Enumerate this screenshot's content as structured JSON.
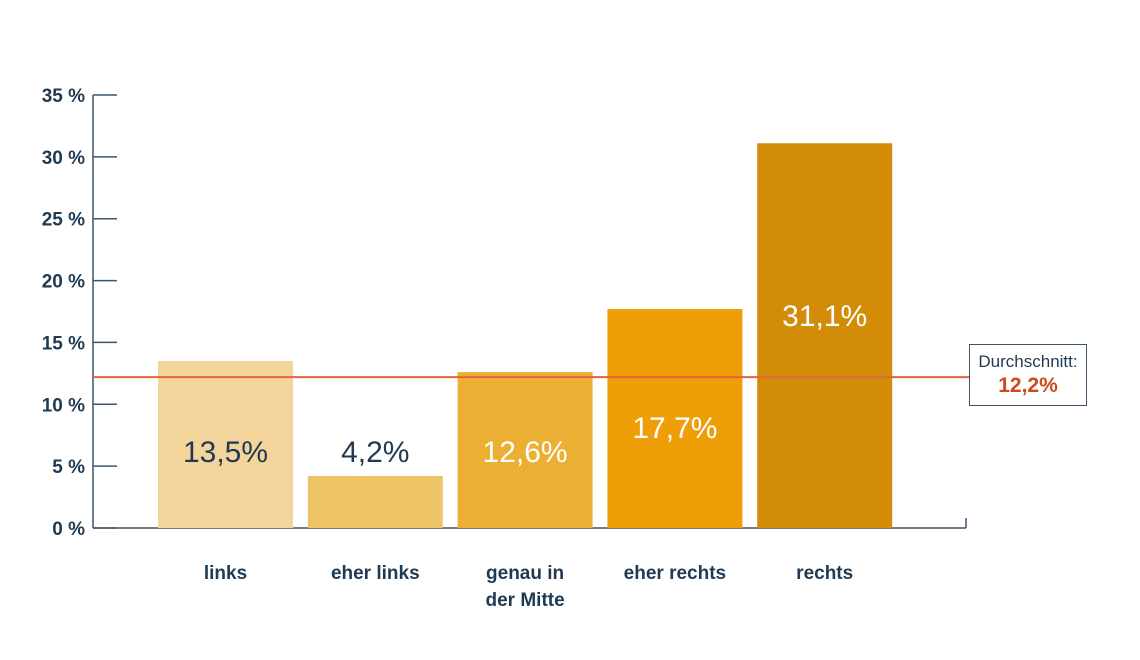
{
  "chart_data": {
    "type": "bar",
    "categories": [
      [
        "links"
      ],
      [
        "eher links"
      ],
      [
        "genau in",
        "der Mitte"
      ],
      [
        "eher rechts"
      ],
      [
        "rechts"
      ]
    ],
    "values": [
      13.5,
      4.2,
      12.6,
      17.7,
      31.1
    ],
    "data_labels": [
      "13,5%",
      "4,2%",
      "12,6%",
      "17,7%",
      "31,1%"
    ],
    "bar_colors": [
      "#f3d59b",
      "#ecc466",
      "#ebaf33",
      "#ee9f07",
      "#d28c08"
    ],
    "label_colors": [
      "#1f3a52",
      "#1f3a52",
      "#ffffff",
      "#ffffff",
      "#ffffff"
    ],
    "ylim": [
      0,
      35
    ],
    "yticks": [
      0,
      5,
      10,
      15,
      20,
      25,
      30,
      35
    ],
    "ytick_labels": [
      "0 %",
      "5 %",
      "10 %",
      "15 %",
      "20 %",
      "25 %",
      "30 %",
      "35 %"
    ],
    "reference_line": {
      "value": 12.2,
      "color": "#e0643c"
    }
  },
  "average_box": {
    "label": "Durchschnitt:",
    "value": "12,2%"
  }
}
